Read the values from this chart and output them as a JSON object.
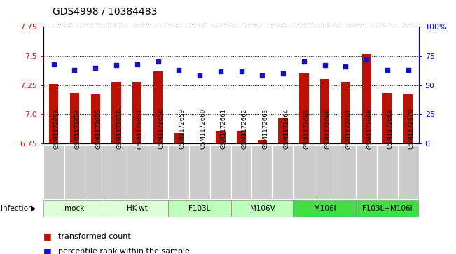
{
  "title": "GDS4998 / 10384483",
  "samples": [
    "GSM1172653",
    "GSM1172654",
    "GSM1172655",
    "GSM1172656",
    "GSM1172657",
    "GSM1172658",
    "GSM1172659",
    "GSM1172660",
    "GSM1172661",
    "GSM1172662",
    "GSM1172663",
    "GSM1172664",
    "GSM1172665",
    "GSM1172666",
    "GSM1172667",
    "GSM1172668",
    "GSM1172669",
    "GSM1172670"
  ],
  "transformed_count": [
    7.26,
    7.18,
    7.17,
    7.28,
    7.28,
    7.37,
    6.84,
    6.75,
    6.86,
    6.86,
    6.78,
    6.97,
    7.35,
    7.3,
    7.28,
    7.52,
    7.18,
    7.17
  ],
  "percentile_rank": [
    68,
    63,
    65,
    67,
    68,
    70,
    63,
    58,
    62,
    62,
    58,
    60,
    70,
    67,
    66,
    72,
    63,
    63
  ],
  "ylim_left": [
    6.75,
    7.75
  ],
  "ylim_right": [
    0,
    100
  ],
  "yticks_left": [
    6.75,
    7.0,
    7.25,
    7.5,
    7.75
  ],
  "yticks_right": [
    0,
    25,
    50,
    75,
    100
  ],
  "bar_color": "#bb1100",
  "dot_color": "#1111cc",
  "sample_box_color": "#cccccc",
  "group_boundaries": [
    {
      "start": 0,
      "end": 3,
      "label": "mock",
      "color": "#ddffd8"
    },
    {
      "start": 3,
      "end": 6,
      "label": "HK-wt",
      "color": "#ddffd8"
    },
    {
      "start": 6,
      "end": 9,
      "label": "F103L",
      "color": "#bbffbb"
    },
    {
      "start": 9,
      "end": 12,
      "label": "M106V",
      "color": "#bbffbb"
    },
    {
      "start": 12,
      "end": 15,
      "label": "M106I",
      "color": "#44dd44"
    },
    {
      "start": 15,
      "end": 18,
      "label": "F103L+M106I",
      "color": "#44dd44"
    }
  ],
  "infection_label": "infection",
  "legend_bar_label": "transformed count",
  "legend_dot_label": "percentile rank within the sample"
}
